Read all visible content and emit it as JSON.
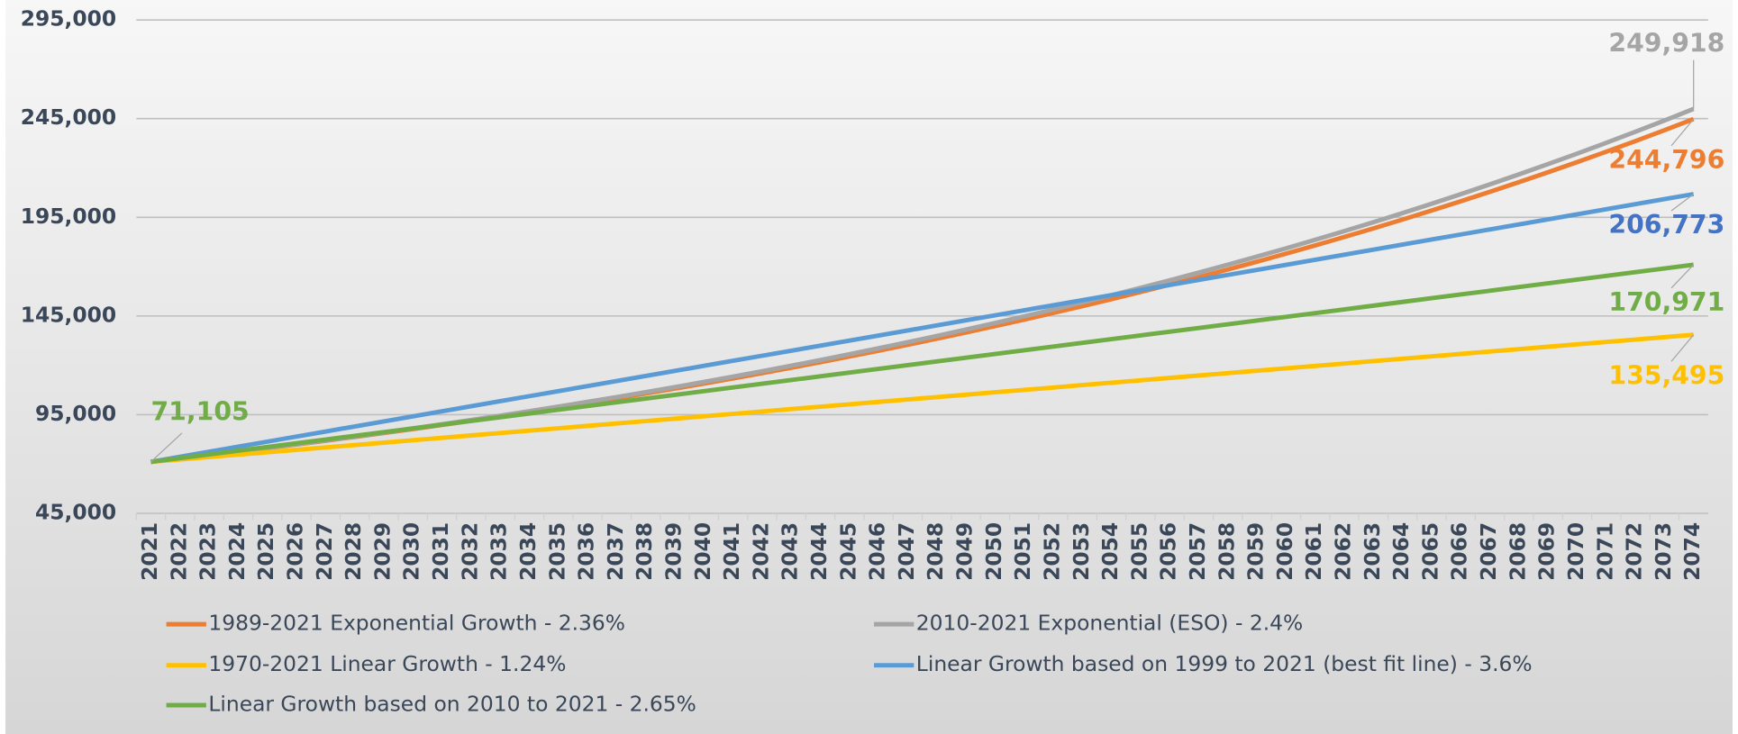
{
  "chart_data": {
    "type": "line",
    "categories": [
      "2021",
      "2022",
      "2023",
      "2024",
      "2025",
      "2026",
      "2027",
      "2028",
      "2029",
      "2030",
      "2031",
      "2032",
      "2033",
      "2034",
      "2035",
      "2036",
      "2037",
      "2038",
      "2039",
      "2040",
      "2041",
      "2042",
      "2043",
      "2044",
      "2045",
      "2046",
      "2047",
      "2048",
      "2049",
      "2050",
      "2051",
      "2052",
      "2053",
      "2054",
      "2055",
      "2056",
      "2057",
      "2058",
      "2059",
      "2060",
      "2061",
      "2062",
      "2063",
      "2064",
      "2065",
      "2066",
      "2067",
      "2068",
      "2069",
      "2070",
      "2071",
      "2072",
      "2073",
      "2074"
    ],
    "ylim": [
      45000,
      295000
    ],
    "yticks": [
      {
        "value": 45000,
        "label": "45,000"
      },
      {
        "value": 95000,
        "label": "95,000"
      },
      {
        "value": 145000,
        "label": "145,000"
      },
      {
        "value": 195000,
        "label": "195,000"
      },
      {
        "value": 245000,
        "label": "245,000"
      },
      {
        "value": 295000,
        "label": "295,000"
      }
    ],
    "grid": true,
    "legend": "bottom",
    "series": [
      {
        "name": "1989-2021 Exponential Growth - 2.36%",
        "color": "#ed7d31",
        "label_color": "#ed7d31",
        "values": [
          71105,
          72783,
          74501,
          76259,
          78059,
          79901,
          81787,
          83717,
          85693,
          87715,
          89785,
          91904,
          94073,
          96293,
          98565,
          100891,
          103272,
          105709,
          108204,
          110758,
          113372,
          116047,
          118786,
          121589,
          124458,
          127395,
          130401,
          133478,
          136628,
          139852,
          143152,
          146530,
          149988,
          153528,
          157151,
          160860,
          164656,
          168542,
          172519,
          176590,
          180757,
          185023,
          189389,
          193858,
          198433,
          203116,
          207909,
          212815,
          217837,
          222978,
          228240,
          233626,
          239139,
          244796
        ],
        "value_labels": [
          null,
          null,
          null,
          null,
          null,
          null,
          null,
          null,
          null,
          null,
          null,
          null,
          null,
          null,
          null,
          null,
          null,
          null,
          null,
          null,
          null,
          null,
          null,
          null,
          null,
          null,
          null,
          null,
          null,
          null,
          null,
          null,
          null,
          null,
          null,
          null,
          null,
          null,
          null,
          null,
          null,
          null,
          null,
          null,
          null,
          null,
          null,
          null,
          null,
          null,
          null,
          null,
          null,
          "244,796"
        ]
      },
      {
        "name": "2010-2021 Exponential (ESO) - 2.4%",
        "color": "#a5a5a5",
        "label_color": "#a5a5a5",
        "values": [
          71105,
          72812,
          74559,
          76348,
          78180,
          80056,
          81977,
          83944,
          85959,
          88022,
          90135,
          92298,
          94513,
          96781,
          99104,
          101482,
          103918,
          106412,
          108966,
          111581,
          114259,
          117001,
          119809,
          122684,
          125628,
          128643,
          131730,
          134892,
          138129,
          141444,
          144839,
          148315,
          151875,
          155520,
          159252,
          163074,
          166988,
          170996,
          175100,
          179302,
          183605,
          188011,
          192523,
          197144,
          201875,
          206720,
          211681,
          216761,
          221963,
          227290,
          232745,
          238331,
          244051,
          249918
        ],
        "value_labels": [
          null,
          null,
          null,
          null,
          null,
          null,
          null,
          null,
          null,
          null,
          null,
          null,
          null,
          null,
          null,
          null,
          null,
          null,
          null,
          null,
          null,
          null,
          null,
          null,
          null,
          null,
          null,
          null,
          null,
          null,
          null,
          null,
          null,
          null,
          null,
          null,
          null,
          null,
          null,
          null,
          null,
          null,
          null,
          null,
          null,
          null,
          null,
          null,
          null,
          null,
          null,
          null,
          null,
          "249,918"
        ]
      },
      {
        "name": "1970-2021 Linear Growth - 1.24%",
        "color": "#ffc000",
        "label_color": "#ffc000",
        "values": [
          71105,
          72320,
          73535,
          74750,
          75965,
          77180,
          78394,
          79609,
          80824,
          82039,
          83254,
          84469,
          85684,
          86899,
          88114,
          89329,
          90543,
          91758,
          92973,
          94188,
          95403,
          96618,
          97833,
          99048,
          100263,
          101478,
          102692,
          103907,
          105122,
          106337,
          107552,
          108767,
          109982,
          111197,
          112412,
          113627,
          114841,
          116056,
          117271,
          118486,
          119701,
          120916,
          122131,
          123346,
          124561,
          125776,
          126990,
          128205,
          129420,
          130635,
          131850,
          133065,
          134280,
          135495
        ],
        "value_labels": [
          null,
          null,
          null,
          null,
          null,
          null,
          null,
          null,
          null,
          null,
          null,
          null,
          null,
          null,
          null,
          null,
          null,
          null,
          null,
          null,
          null,
          null,
          null,
          null,
          null,
          null,
          null,
          null,
          null,
          null,
          null,
          null,
          null,
          null,
          null,
          null,
          null,
          null,
          null,
          null,
          null,
          null,
          null,
          null,
          null,
          null,
          null,
          null,
          null,
          null,
          null,
          null,
          null,
          "135,495"
        ]
      },
      {
        "name": "Linear Growth based on 1999 to 2021 (best fit line) - 3.6%",
        "color": "#5b9bd5",
        "label_color": "#4472c4",
        "values": [
          71105,
          73665,
          76225,
          78784,
          81344,
          83904,
          86464,
          89023,
          91583,
          94143,
          96703,
          99262,
          101822,
          104382,
          106942,
          109502,
          112061,
          114621,
          117181,
          119741,
          122300,
          124860,
          127420,
          129980,
          132539,
          135099,
          137659,
          140219,
          142779,
          145338,
          147898,
          150458,
          153018,
          155577,
          158137,
          160697,
          163257,
          165816,
          168376,
          170936,
          173496,
          176055,
          178615,
          181175,
          183735,
          186295,
          188854,
          191414,
          193974,
          196534,
          199093,
          201653,
          204213,
          206773
        ],
        "value_labels": [
          null,
          null,
          null,
          null,
          null,
          null,
          null,
          null,
          null,
          null,
          null,
          null,
          null,
          null,
          null,
          null,
          null,
          null,
          null,
          null,
          null,
          null,
          null,
          null,
          null,
          null,
          null,
          null,
          null,
          null,
          null,
          null,
          null,
          null,
          null,
          null,
          null,
          null,
          null,
          null,
          null,
          null,
          null,
          null,
          null,
          null,
          null,
          null,
          null,
          null,
          null,
          null,
          null,
          "206,773"
        ]
      },
      {
        "name": "Linear Growth based on 2010 to 2021 - 2.65%",
        "color": "#70ad47",
        "label_color": "#70ad47",
        "values": [
          71105,
          72989,
          74874,
          76758,
          78642,
          80526,
          82411,
          84295,
          86179,
          88063,
          89948,
          91832,
          93716,
          95600,
          97485,
          99369,
          101253,
          103137,
          105022,
          106906,
          108790,
          110674,
          112559,
          114443,
          116327,
          118211,
          120096,
          121980,
          123864,
          125748,
          127633,
          129517,
          131401,
          133285,
          135170,
          137054,
          138938,
          140822,
          142707,
          144591,
          146475,
          148360,
          150244,
          152128,
          154012,
          155897,
          157781,
          159665,
          161549,
          163434,
          165318,
          167202,
          169086,
          170971
        ],
        "value_labels": [
          "71,105",
          null,
          null,
          null,
          null,
          null,
          null,
          null,
          null,
          null,
          null,
          null,
          null,
          null,
          null,
          null,
          null,
          null,
          null,
          null,
          null,
          null,
          null,
          null,
          null,
          null,
          null,
          null,
          null,
          null,
          null,
          null,
          null,
          null,
          null,
          null,
          null,
          null,
          null,
          null,
          null,
          null,
          null,
          null,
          null,
          null,
          null,
          null,
          null,
          null,
          null,
          null,
          null,
          "170,971"
        ]
      }
    ]
  }
}
